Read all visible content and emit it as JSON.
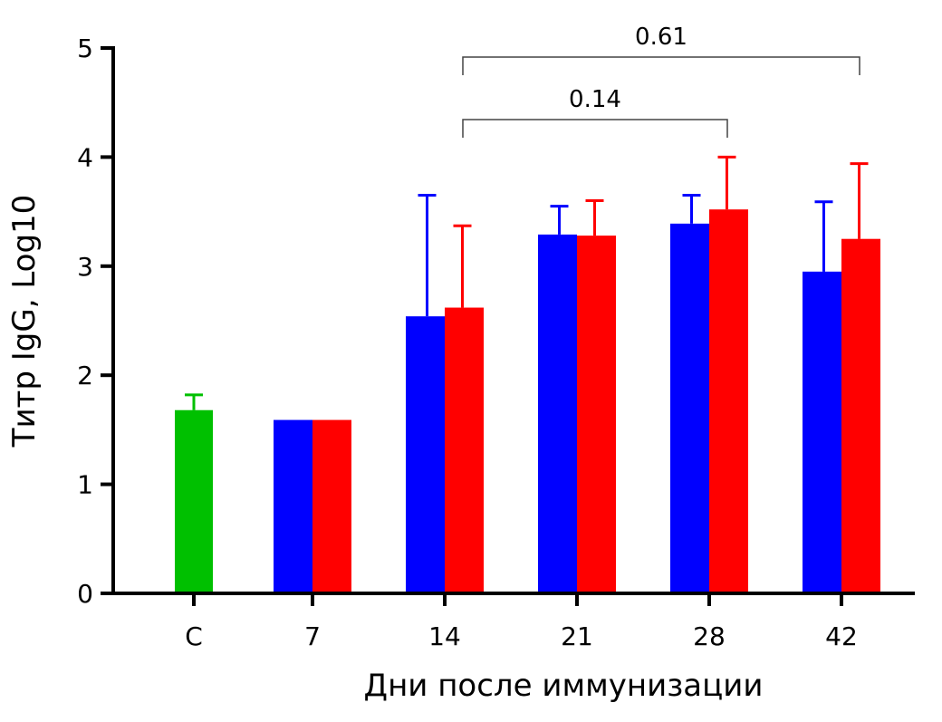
{
  "chart_data": {
    "type": "bar",
    "xlabel": "Дни после иммунизации",
    "ylabel": "Титр IgG, Log10",
    "ylim": [
      0,
      5
    ],
    "yticks": [
      "0",
      "1",
      "2",
      "3",
      "4",
      "5"
    ],
    "categories": [
      "C",
      "7",
      "14",
      "21",
      "28",
      "42"
    ],
    "colors": {
      "control": "#00c000",
      "series1": "#0000ff",
      "series2": "#ff0000"
    },
    "control": {
      "category": "C",
      "value": 1.68,
      "error_top": 1.82
    },
    "series": [
      {
        "color": "#0000ff",
        "values": [
          null,
          1.59,
          2.54,
          3.29,
          3.39,
          2.95
        ],
        "error_top": [
          null,
          null,
          3.65,
          3.55,
          3.65,
          3.59
        ]
      },
      {
        "color": "#ff0000",
        "values": [
          null,
          1.59,
          2.62,
          3.28,
          3.52,
          3.25
        ],
        "error_top": [
          null,
          null,
          3.37,
          3.6,
          4.0,
          3.94
        ]
      }
    ],
    "annotations": [
      {
        "label": "0.14",
        "from": "14",
        "to": "28"
      },
      {
        "label": "0.61",
        "from": "14",
        "to": "42"
      }
    ],
    "grid": false,
    "legend": "none"
  }
}
